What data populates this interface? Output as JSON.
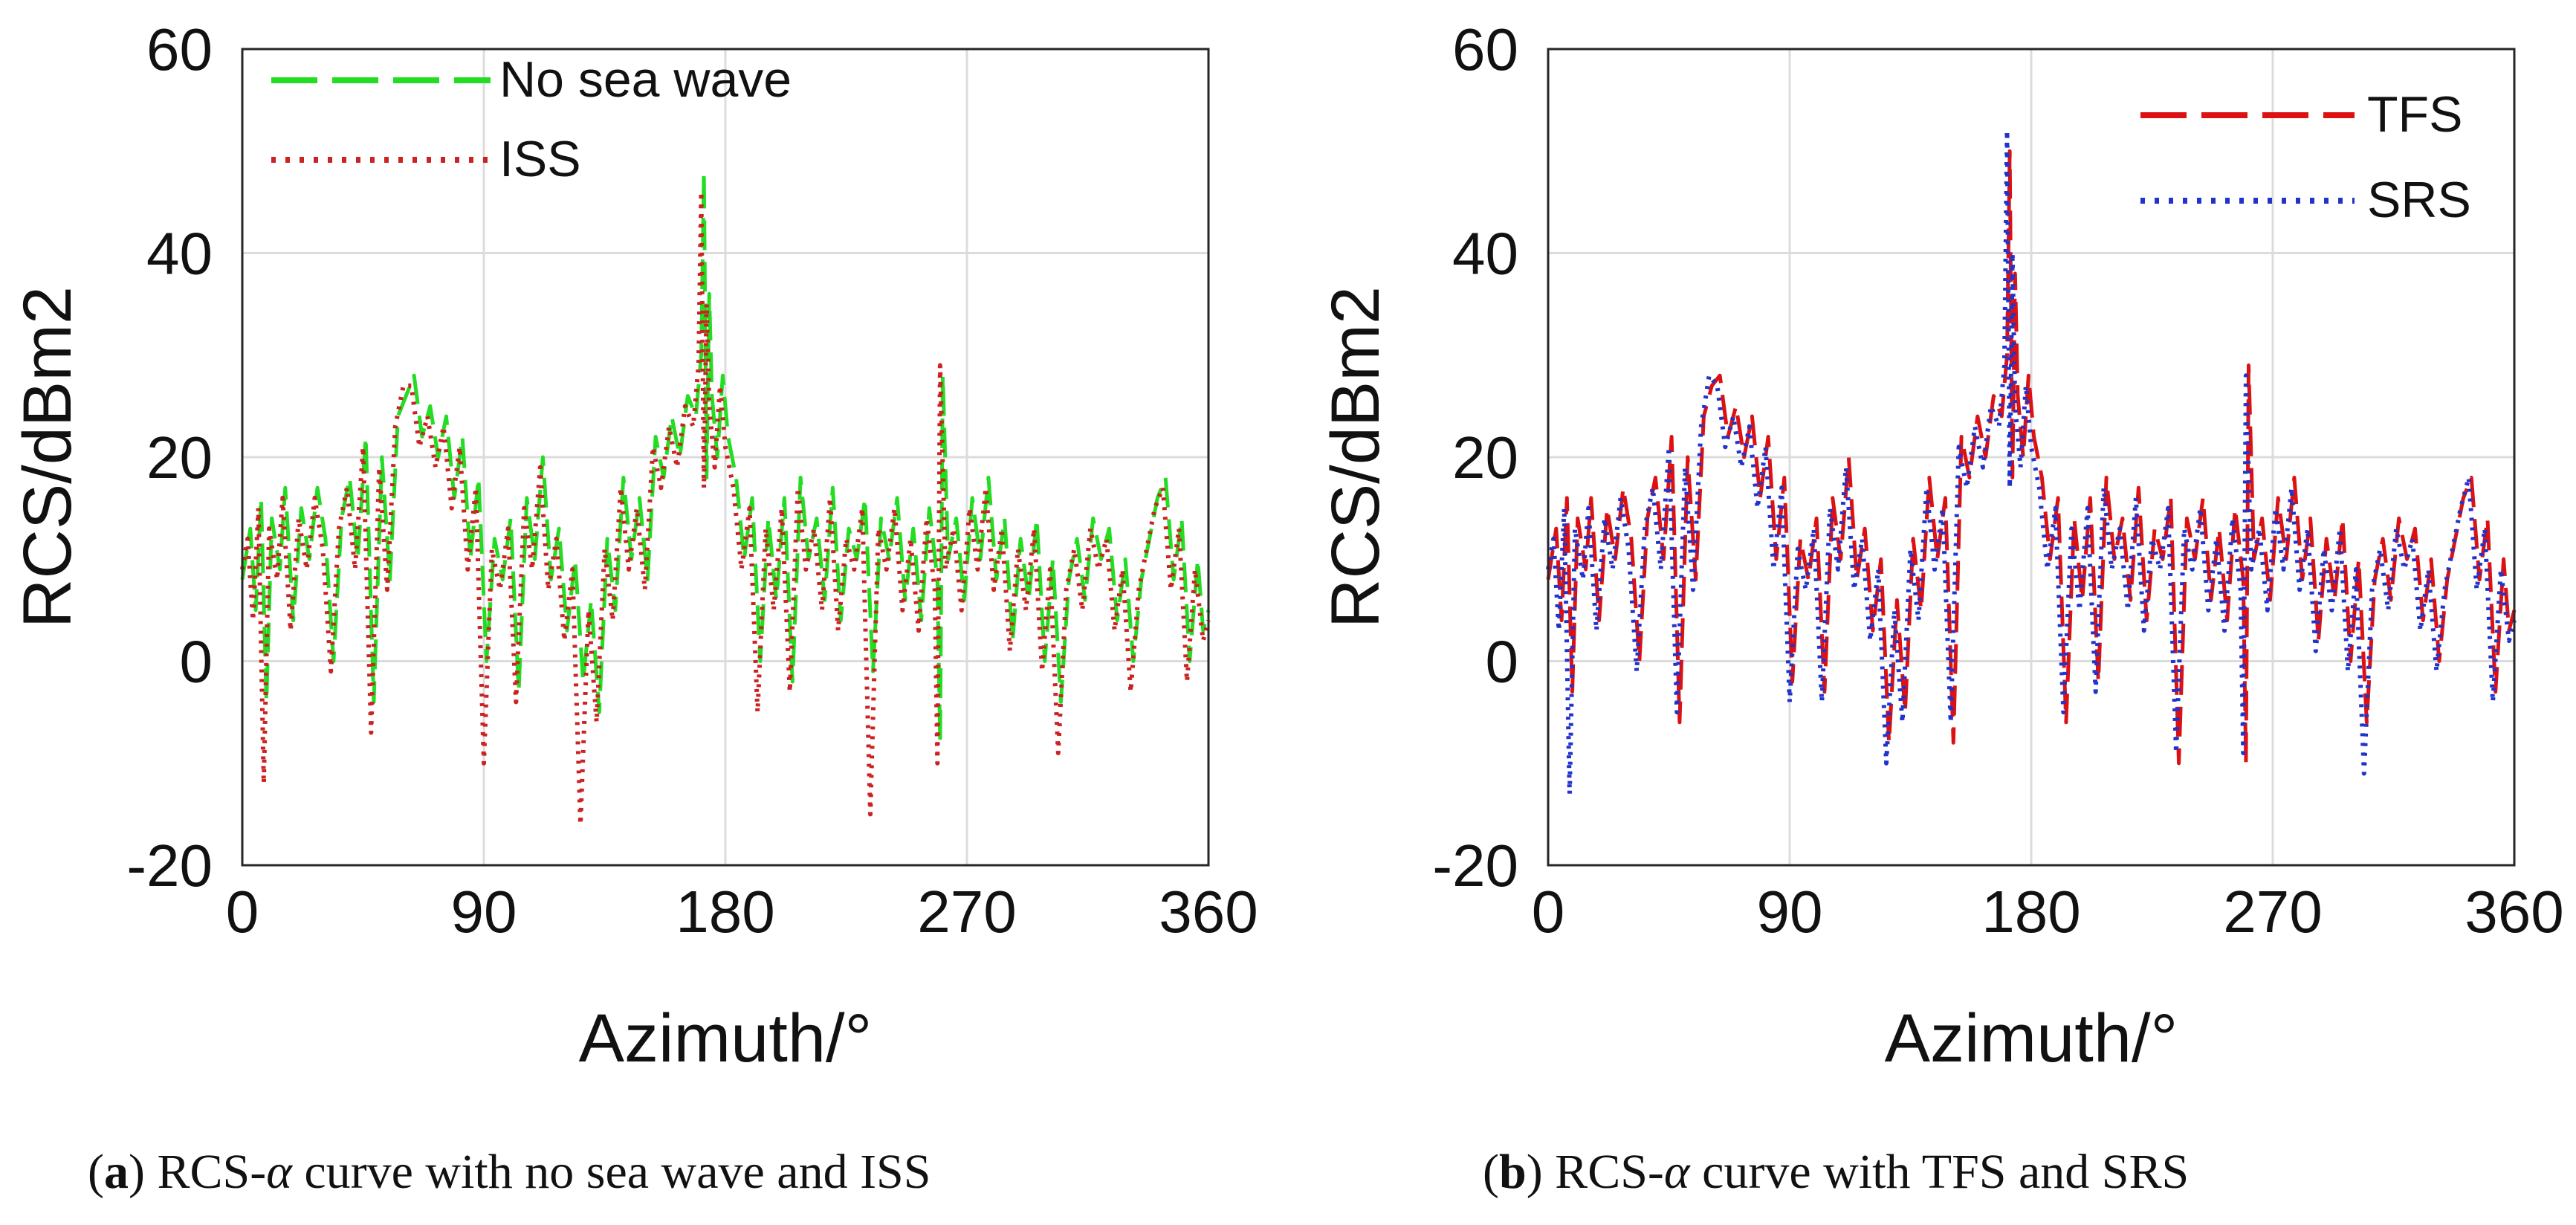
{
  "chart_data": [
    {
      "id": "a",
      "type": "line",
      "panel_label": "a",
      "caption_pre": ") RCS-",
      "caption_alpha": "α",
      "caption_post": " curve with no sea wave and ISS",
      "xlabel": "Azimuth/°",
      "ylabel": "RCS/dBm2",
      "xlim": [
        0,
        360
      ],
      "ylim": [
        -20,
        60
      ],
      "xticks": [
        0,
        90,
        180,
        270,
        360
      ],
      "yticks": [
        -20,
        0,
        20,
        40,
        60
      ],
      "grid": true,
      "legend_position": "top-left",
      "series": [
        {
          "name": "No sea wave",
          "color": "#22dd22",
          "style": "dashed",
          "x": [
            0,
            3,
            5,
            7,
            9,
            11,
            14,
            16,
            19,
            22,
            25,
            28,
            31,
            34,
            37,
            40,
            43,
            46,
            49,
            52,
            55,
            58,
            61,
            64,
            67,
            70,
            73,
            76,
            79,
            82,
            85,
            88,
            91,
            94,
            97,
            100,
            103,
            106,
            109,
            112,
            115,
            118,
            121,
            124,
            127,
            130,
            133,
            136,
            139,
            142,
            145,
            148,
            151,
            154,
            157,
            160,
            163,
            166,
            169,
            171,
            172,
            173,
            174,
            175,
            177,
            179,
            181,
            184,
            187,
            190,
            193,
            196,
            199,
            202,
            205,
            208,
            211,
            214,
            217,
            220,
            223,
            226,
            229,
            232,
            235,
            238,
            241,
            244,
            247,
            250,
            253,
            256,
            259,
            260,
            261,
            263,
            266,
            269,
            272,
            275,
            278,
            281,
            284,
            287,
            290,
            293,
            296,
            299,
            302,
            305,
            308,
            311,
            314,
            317,
            320,
            323,
            326,
            329,
            332,
            335,
            338,
            341,
            344,
            347,
            350,
            353,
            356,
            358,
            360
          ],
          "y": [
            8,
            13,
            5,
            16,
            -4,
            14,
            9,
            17,
            4,
            15,
            10,
            17,
            12,
            0,
            14,
            18,
            10,
            22,
            -4,
            20,
            8,
            24,
            26,
            28,
            22,
            25,
            20,
            24,
            16,
            22,
            10,
            18,
            0,
            12,
            8,
            14,
            -3,
            16,
            10,
            20,
            8,
            13,
            3,
            10,
            -2,
            6,
            -5,
            12,
            5,
            18,
            10,
            16,
            8,
            22,
            18,
            24,
            20,
            26,
            24,
            30,
            48,
            18,
            36,
            26,
            20,
            28,
            22,
            18,
            10,
            16,
            0,
            14,
            6,
            16,
            -2,
            18,
            10,
            14,
            6,
            17,
            4,
            13,
            10,
            16,
            -1,
            14,
            10,
            16,
            6,
            13,
            4,
            15,
            8,
            -8,
            28,
            10,
            14,
            6,
            16,
            10,
            18,
            8,
            14,
            2,
            12,
            6,
            14,
            0,
            10,
            -4,
            8,
            12,
            6,
            14,
            10,
            13,
            4,
            10,
            0,
            8,
            12,
            16,
            18,
            8,
            14,
            0,
            10,
            3,
            5
          ]
        },
        {
          "name": "ISS",
          "color": "#cc2222",
          "style": "dotted",
          "x": [
            0,
            2,
            4,
            6,
            8,
            10,
            13,
            15,
            18,
            21,
            24,
            27,
            30,
            33,
            36,
            39,
            42,
            45,
            48,
            51,
            54,
            57,
            60,
            63,
            66,
            69,
            72,
            75,
            78,
            81,
            84,
            87,
            90,
            93,
            96,
            99,
            102,
            105,
            108,
            111,
            114,
            117,
            120,
            123,
            126,
            129,
            132,
            135,
            138,
            141,
            144,
            147,
            150,
            153,
            156,
            159,
            162,
            165,
            168,
            170,
            171,
            172,
            173,
            174,
            176,
            178,
            180,
            183,
            186,
            189,
            192,
            195,
            198,
            201,
            204,
            207,
            210,
            213,
            216,
            219,
            222,
            225,
            228,
            231,
            234,
            237,
            240,
            243,
            246,
            249,
            252,
            255,
            258,
            259,
            260,
            262,
            265,
            268,
            271,
            274,
            277,
            280,
            283,
            286,
            289,
            292,
            295,
            298,
            301,
            304,
            307,
            310,
            313,
            316,
            319,
            322,
            325,
            328,
            331,
            334,
            337,
            340,
            343,
            346,
            349,
            352,
            355,
            358,
            360
          ],
          "y": [
            9,
            12,
            4,
            15,
            -12,
            13,
            8,
            16,
            3,
            14,
            9,
            16,
            11,
            -1,
            13,
            17,
            9,
            21,
            -7,
            19,
            7,
            23,
            27,
            27,
            21,
            24,
            19,
            23,
            15,
            21,
            9,
            17,
            -10,
            11,
            7,
            13,
            -4,
            15,
            9,
            19,
            7,
            12,
            2,
            9,
            -16,
            5,
            -6,
            11,
            4,
            17,
            9,
            15,
            7,
            21,
            17,
            23,
            19,
            25,
            23,
            29,
            46,
            17,
            35,
            25,
            19,
            27,
            21,
            17,
            9,
            15,
            -5,
            13,
            5,
            15,
            -3,
            17,
            9,
            13,
            5,
            16,
            3,
            12,
            9,
            15,
            -15,
            13,
            9,
            15,
            5,
            12,
            3,
            14,
            7,
            -10,
            29,
            9,
            13,
            5,
            15,
            9,
            17,
            7,
            13,
            1,
            11,
            5,
            13,
            -1,
            9,
            -9,
            7,
            11,
            5,
            13,
            9,
            12,
            3,
            9,
            -3,
            7,
            11,
            15,
            17,
            7,
            13,
            -2,
            9,
            2,
            4
          ]
        }
      ]
    },
    {
      "id": "b",
      "type": "line",
      "panel_label": "b",
      "caption_pre": ") RCS-",
      "caption_alpha": "α",
      "caption_post": " curve with TFS and SRS",
      "xlabel": "Azimuth/°",
      "ylabel": "RCS/dBm2",
      "xlim": [
        0,
        360
      ],
      "ylim": [
        -20,
        60
      ],
      "xticks": [
        0,
        90,
        180,
        270,
        360
      ],
      "yticks": [
        -20,
        0,
        20,
        40,
        60
      ],
      "grid": true,
      "legend_position": "top-right",
      "series": [
        {
          "name": "TFS",
          "color": "#dd1111",
          "style": "dashed",
          "x": [
            0,
            3,
            5,
            7,
            9,
            11,
            14,
            16,
            19,
            22,
            25,
            28,
            31,
            34,
            37,
            40,
            43,
            46,
            49,
            52,
            55,
            58,
            61,
            64,
            67,
            70,
            73,
            76,
            79,
            82,
            85,
            88,
            91,
            94,
            97,
            100,
            103,
            106,
            109,
            112,
            115,
            118,
            121,
            124,
            127,
            130,
            133,
            136,
            139,
            142,
            145,
            148,
            151,
            154,
            157,
            160,
            163,
            166,
            169,
            171,
            172,
            173,
            174,
            175,
            177,
            179,
            181,
            184,
            187,
            190,
            193,
            196,
            199,
            202,
            205,
            208,
            211,
            214,
            217,
            220,
            223,
            226,
            229,
            232,
            235,
            238,
            241,
            244,
            247,
            250,
            253,
            256,
            259,
            260,
            261,
            263,
            266,
            269,
            272,
            275,
            278,
            281,
            284,
            287,
            290,
            293,
            296,
            299,
            302,
            305,
            308,
            311,
            314,
            317,
            320,
            323,
            326,
            329,
            332,
            335,
            338,
            341,
            344,
            347,
            350,
            353,
            356,
            358,
            360
          ],
          "y": [
            8,
            13,
            4,
            16,
            -3,
            14,
            9,
            16,
            4,
            15,
            10,
            17,
            12,
            0,
            14,
            18,
            10,
            22,
            -6,
            20,
            8,
            24,
            27,
            28,
            22,
            25,
            20,
            24,
            16,
            22,
            10,
            18,
            -2,
            12,
            8,
            14,
            -3,
            16,
            10,
            20,
            8,
            13,
            3,
            10,
            -8,
            6,
            -5,
            12,
            5,
            18,
            10,
            16,
            -8,
            22,
            18,
            24,
            20,
            26,
            24,
            30,
            50,
            18,
            38,
            26,
            20,
            28,
            22,
            18,
            10,
            16,
            -6,
            14,
            6,
            16,
            -2,
            18,
            10,
            14,
            6,
            17,
            4,
            13,
            10,
            16,
            -10,
            14,
            10,
            16,
            6,
            13,
            4,
            15,
            8,
            -10,
            29,
            10,
            14,
            6,
            16,
            10,
            18,
            8,
            14,
            2,
            12,
            6,
            14,
            0,
            10,
            -6,
            8,
            12,
            6,
            14,
            10,
            13,
            4,
            10,
            0,
            8,
            12,
            16,
            18,
            8,
            14,
            -3,
            10,
            3,
            5
          ]
        },
        {
          "name": "SRS",
          "color": "#2233cc",
          "style": "dotted",
          "x": [
            0,
            2,
            4,
            6,
            8,
            10,
            13,
            15,
            18,
            21,
            24,
            27,
            30,
            33,
            36,
            39,
            42,
            45,
            48,
            51,
            54,
            57,
            60,
            63,
            66,
            69,
            72,
            75,
            78,
            81,
            84,
            87,
            90,
            93,
            96,
            99,
            102,
            105,
            108,
            111,
            114,
            117,
            120,
            123,
            126,
            129,
            132,
            135,
            138,
            141,
            144,
            147,
            150,
            153,
            156,
            159,
            162,
            165,
            168,
            170,
            171,
            172,
            173,
            174,
            176,
            178,
            180,
            183,
            186,
            189,
            192,
            195,
            198,
            201,
            204,
            207,
            210,
            213,
            216,
            219,
            222,
            225,
            228,
            231,
            234,
            237,
            240,
            243,
            246,
            249,
            252,
            255,
            258,
            259,
            260,
            262,
            265,
            268,
            271,
            274,
            277,
            280,
            283,
            286,
            289,
            292,
            295,
            298,
            301,
            304,
            307,
            310,
            313,
            316,
            319,
            322,
            325,
            328,
            331,
            334,
            337,
            340,
            343,
            346,
            349,
            352,
            355,
            358,
            360
          ],
          "y": [
            9,
            12,
            3,
            15,
            -13,
            13,
            8,
            15,
            3,
            14,
            9,
            16,
            11,
            -1,
            13,
            17,
            9,
            21,
            -5,
            19,
            7,
            23,
            28,
            27,
            21,
            24,
            19,
            23,
            15,
            21,
            9,
            17,
            -4,
            11,
            7,
            13,
            -4,
            15,
            9,
            19,
            7,
            12,
            2,
            9,
            -10,
            5,
            -6,
            11,
            4,
            17,
            9,
            15,
            -6,
            21,
            17,
            23,
            19,
            25,
            23,
            29,
            52,
            17,
            40,
            25,
            19,
            27,
            21,
            17,
            9,
            15,
            -5,
            13,
            5,
            15,
            -3,
            17,
            9,
            13,
            5,
            16,
            3,
            12,
            9,
            15,
            -9,
            13,
            9,
            15,
            5,
            12,
            3,
            14,
            7,
            -9,
            28,
            9,
            13,
            5,
            15,
            9,
            17,
            7,
            13,
            1,
            11,
            5,
            13,
            -1,
            9,
            -11,
            7,
            11,
            5,
            13,
            9,
            12,
            3,
            9,
            -1,
            7,
            11,
            15,
            18,
            7,
            13,
            -4,
            9,
            2,
            4
          ]
        }
      ]
    }
  ]
}
